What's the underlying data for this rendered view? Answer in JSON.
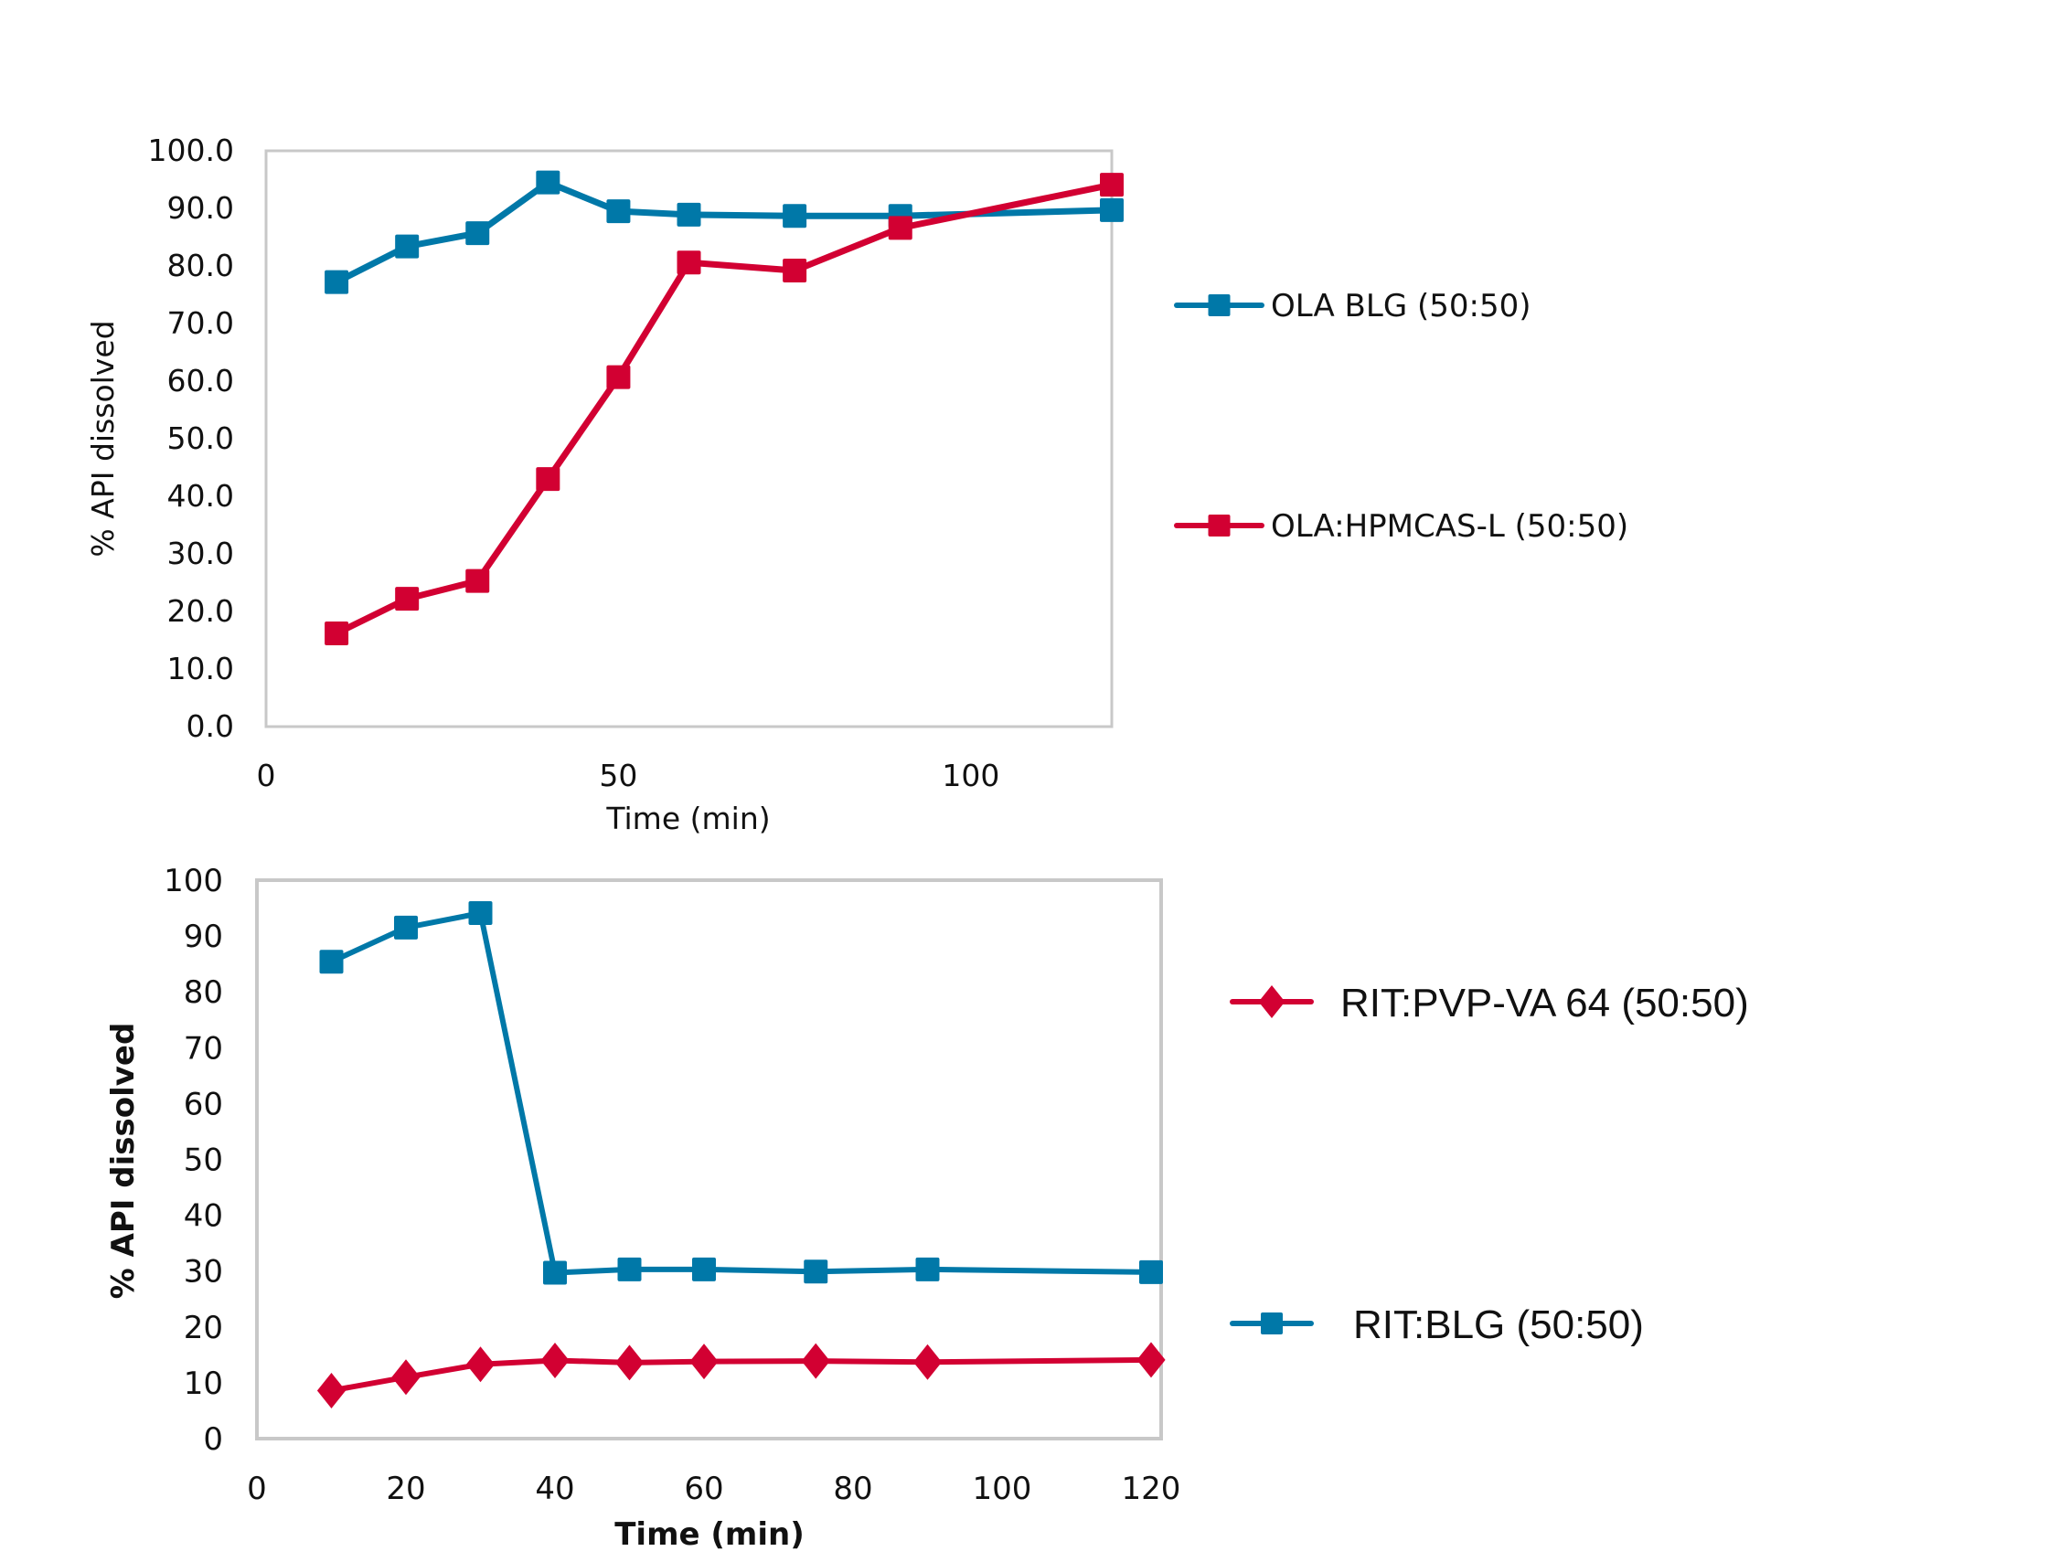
{
  "colors": {
    "blue": "#0078A8",
    "red": "#D20032",
    "frame": "#C8C8C8"
  },
  "chart_data": [
    {
      "type": "line",
      "title": "",
      "xlabel": "Time (min)",
      "ylabel": "% API dissolved",
      "xlim": [
        0,
        120
      ],
      "ylim": [
        0,
        100
      ],
      "x_ticks": [
        "0",
        "50",
        "100"
      ],
      "x_tick_values": [
        0,
        50,
        100
      ],
      "y_ticks": [
        "0.0",
        "10.0",
        "20.0",
        "30.0",
        "40.0",
        "50.0",
        "60.0",
        "70.0",
        "80.0",
        "90.0",
        "100.0"
      ],
      "y_tick_values": [
        0,
        10,
        20,
        30,
        40,
        50,
        60,
        70,
        80,
        90,
        100
      ],
      "grid": false,
      "legend_position": "right",
      "x": [
        10,
        20,
        30,
        40,
        50,
        60,
        75,
        90,
        120
      ],
      "series": [
        {
          "name": "OLA BLG (50:50)",
          "color": "#0078A8",
          "marker": "square",
          "values": [
            77.2,
            83.4,
            85.7,
            94.5,
            89.5,
            88.9,
            88.7,
            88.7,
            89.7
          ]
        },
        {
          "name": "OLA:HPMCAS-L (50:50)",
          "color": "#D20032",
          "marker": "square",
          "values": [
            16.2,
            22.2,
            25.3,
            43.0,
            60.7,
            80.6,
            79.2,
            86.6,
            94.1
          ]
        }
      ]
    },
    {
      "type": "line",
      "title": "",
      "xlabel": "Time (min)",
      "ylabel": "% API dissolved",
      "xlim": [
        0,
        120
      ],
      "ylim": [
        0,
        100
      ],
      "x_ticks": [
        "0",
        "20",
        "40",
        "60",
        "80",
        "100",
        "120"
      ],
      "x_tick_values": [
        0,
        20,
        40,
        60,
        80,
        100,
        120
      ],
      "y_ticks": [
        "0",
        "10",
        "20",
        "30",
        "40",
        "50",
        "60",
        "70",
        "80",
        "90",
        "100"
      ],
      "y_tick_values": [
        0,
        10,
        20,
        30,
        40,
        50,
        60,
        70,
        80,
        90,
        100
      ],
      "grid": false,
      "legend_position": "right",
      "x": [
        10,
        20,
        30,
        40,
        50,
        60,
        75,
        90,
        120
      ],
      "series": [
        {
          "name": "RIT:PVP-VA 64 (50:50)",
          "color": "#D20032",
          "marker": "diamond",
          "values": [
            8.6,
            11.0,
            13.3,
            14.0,
            13.6,
            13.8,
            13.9,
            13.7,
            14.1
          ]
        },
        {
          "name": "RIT:BLG (50:50)",
          "color": "#0078A8",
          "marker": "square",
          "values": [
            85.4,
            91.5,
            94.1,
            29.7,
            30.3,
            30.3,
            29.9,
            30.3,
            29.8
          ]
        }
      ]
    }
  ]
}
